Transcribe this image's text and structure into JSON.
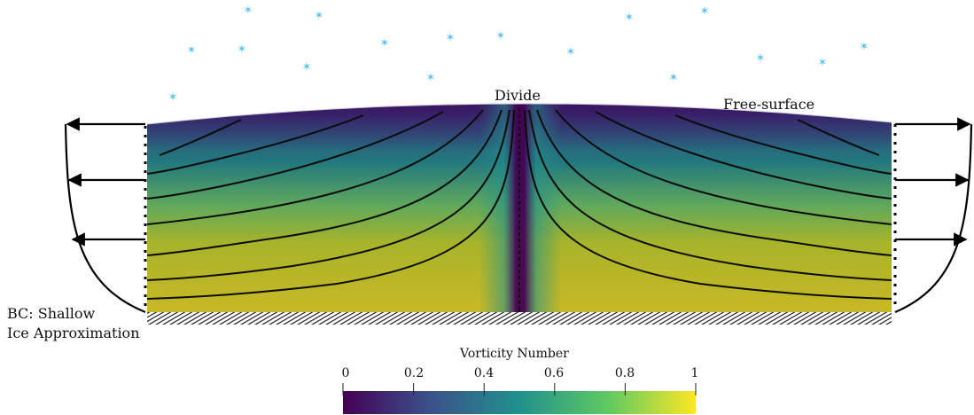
{
  "labels": {
    "divide": "Divide",
    "free_surface": "Free-surface",
    "bc": "BC: Shallow\nIce Approximation"
  },
  "colorbar": {
    "title": "Vorticity Number",
    "ticks": [
      "0",
      "0.2",
      "0.4",
      "0.6",
      "0.8",
      "1"
    ],
    "colors": [
      "#440154",
      "#3b528b",
      "#21918c",
      "#5ec962",
      "#fde725"
    ]
  },
  "icons": {
    "snow": "snowflake-icon",
    "arrow": "arrow-left-right-icon",
    "bed": "hatched-bedrock"
  }
}
